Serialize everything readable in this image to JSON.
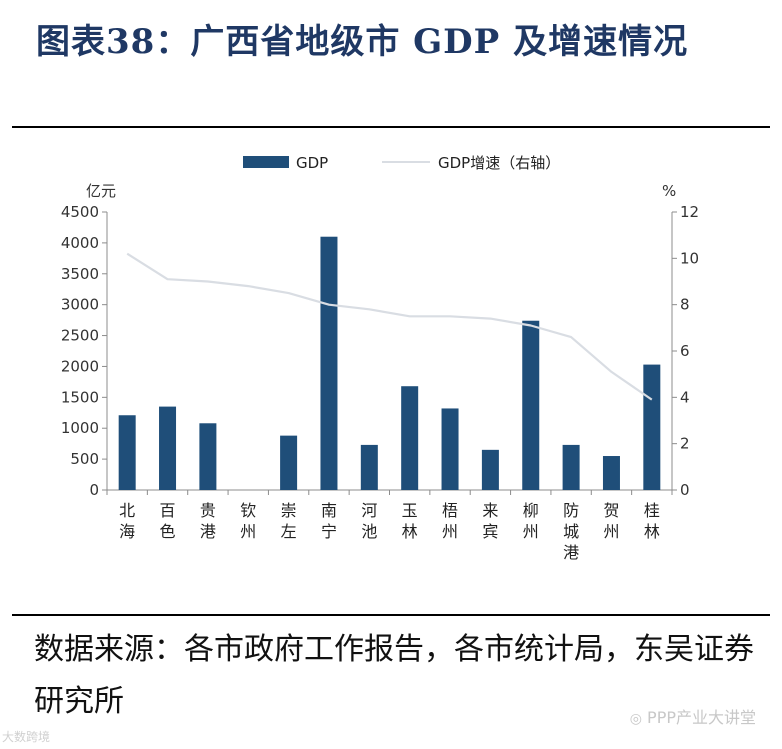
{
  "title": "图表38：广西省地级市 GDP 及增速情况",
  "source_text": "数据来源：各市政府工作报告，各市统计局，东吴证券研究所",
  "watermark_right": "PPP产业大讲堂",
  "watermark_left": "大数跨境",
  "colors": {
    "bar": "#1f4e79",
    "line": "#d9dde3",
    "title": "#1f3864"
  },
  "chart_data": {
    "type": "bar",
    "legend_position": "top-center",
    "grid": false,
    "categories": [
      "北海",
      "百色",
      "贵港",
      "钦州",
      "崇左",
      "南宁",
      "河池",
      "玉林",
      "梧州",
      "来宾",
      "柳州",
      "防城港",
      "贺州",
      "桂林"
    ],
    "y_unit_left": "亿元",
    "y_unit_right": "%",
    "ylim": [
      0,
      4500
    ],
    "yticks": [
      0,
      500,
      1000,
      1500,
      2000,
      2500,
      3000,
      3500,
      4000,
      4500
    ],
    "ylim_right": [
      0,
      12
    ],
    "yticks_right": [
      0,
      2,
      4,
      6,
      8,
      10,
      12
    ],
    "series": [
      {
        "name": "GDP",
        "type": "bar",
        "axis": "left",
        "values": [
          1210,
          1350,
          1080,
          null,
          880,
          4100,
          730,
          1680,
          1320,
          650,
          2740,
          730,
          550,
          2030
        ]
      },
      {
        "name": "GDP增速（右轴）",
        "type": "line",
        "axis": "right",
        "values": [
          10.2,
          9.1,
          9.0,
          8.8,
          8.5,
          8.0,
          7.8,
          7.5,
          7.5,
          7.4,
          7.1,
          6.6,
          5.1,
          3.9
        ]
      }
    ]
  }
}
